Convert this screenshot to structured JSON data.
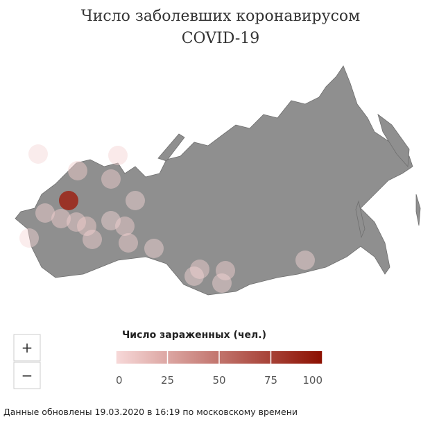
{
  "title_lines": [
    "Число заболевших коронавирусом",
    "COVID-19"
  ],
  "bubbles": {
    "values": [
      86,
      1,
      2,
      3,
      4,
      6,
      2,
      3,
      5,
      4,
      6,
      3,
      2,
      4,
      3,
      2,
      3,
      2,
      3,
      2,
      2
    ]
  },
  "legend": {
    "title": "Число зараженных (чел.)",
    "lim": [
      0,
      100
    ],
    "ticks": [
      0,
      25,
      50,
      75,
      100
    ],
    "colors": [
      "#f7d9d9",
      "#8c0f00"
    ]
  },
  "controls": {
    "zoom_in": "+",
    "zoom_out": "−"
  },
  "footer": "Данные обновлены 19.03.2020 в 16:19 по московскому времени"
}
